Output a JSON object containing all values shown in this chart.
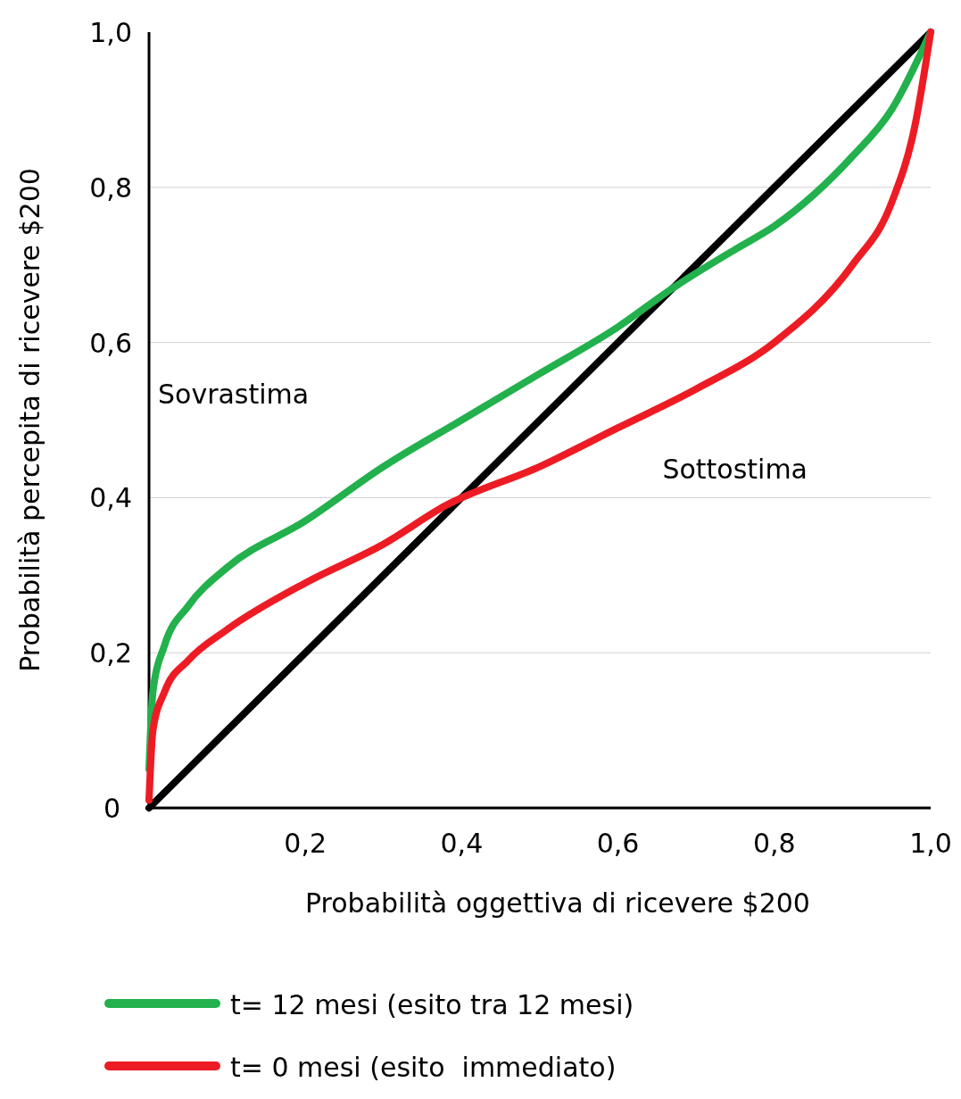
{
  "chart_data": {
    "type": "line",
    "xlabel": "Probabilità oggettiva di ricevere $200",
    "ylabel": "Probabilità percepita di ricevere $200",
    "xlim": [
      0,
      1
    ],
    "ylim": [
      0,
      1
    ],
    "xticks": [
      {
        "value": 0.2,
        "label": "0,2"
      },
      {
        "value": 0.4,
        "label": "0,4"
      },
      {
        "value": 0.6,
        "label": "0,6"
      },
      {
        "value": 0.8,
        "label": "0,8"
      },
      {
        "value": 1,
        "label": "1,0"
      }
    ],
    "yticks": [
      {
        "value": 0,
        "label": "0"
      },
      {
        "value": 0.2,
        "label": "0,2"
      },
      {
        "value": 0.4,
        "label": "0,4"
      },
      {
        "value": 0.6,
        "label": "0,6"
      },
      {
        "value": 0.8,
        "label": "0,8"
      },
      {
        "value": 1,
        "label": "1,0"
      }
    ],
    "grid": "y",
    "legend": "bottom",
    "marker": "none",
    "line_style": "solid",
    "annotations": [
      "Sovrastima",
      "Sottostima"
    ],
    "series": [
      {
        "color": "#000000",
        "x": [
          0,
          1
        ],
        "values": [
          0,
          1
        ]
      },
      {
        "name": "t= 12 mesi (esito tra 12 mesi)",
        "color": "#22b14c",
        "x": [
          0,
          0.005,
          0.02,
          0.05,
          0.1,
          0.2,
          0.3,
          0.4,
          0.5,
          0.6,
          0.67,
          0.75,
          0.8,
          0.9,
          0.95,
          1
        ],
        "values": [
          0.05,
          0.15,
          0.21,
          0.26,
          0.31,
          0.37,
          0.44,
          0.5,
          0.56,
          0.62,
          0.67,
          0.72,
          0.75,
          0.84,
          0.9,
          1
        ]
      },
      {
        "name": "t= 0 mesi (esito  immediato)",
        "color": "#ed1c24",
        "x": [
          0,
          0.005,
          0.02,
          0.05,
          0.1,
          0.2,
          0.3,
          0.38,
          0.5,
          0.6,
          0.7,
          0.8,
          0.9,
          0.95,
          0.98,
          1
        ],
        "values": [
          0.01,
          0.1,
          0.15,
          0.19,
          0.23,
          0.29,
          0.34,
          0.39,
          0.44,
          0.49,
          0.54,
          0.6,
          0.7,
          0.78,
          0.88,
          1
        ]
      }
    ]
  }
}
